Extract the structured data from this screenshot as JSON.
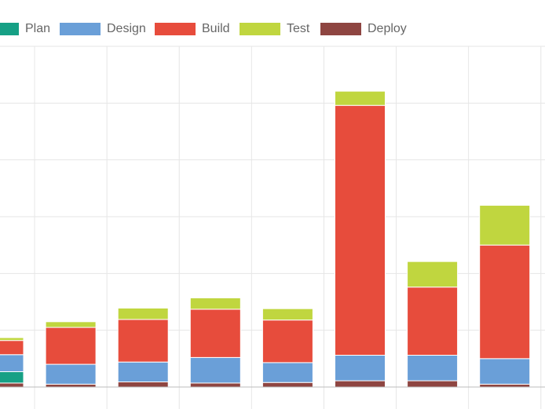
{
  "chart_data": {
    "type": "bar",
    "stacked": true,
    "legend_position": "top",
    "grid": true,
    "categories": [
      "",
      "",
      "",
      "",
      "",
      "",
      "",
      ""
    ],
    "ylim": [
      0,
      60
    ],
    "series": [
      {
        "name": "Plan",
        "color": "#16a085",
        "values": [
          2.0,
          0,
          0,
          0,
          0,
          0,
          0,
          0
        ]
      },
      {
        "name": "Design",
        "color": "#6a9fd8",
        "values": [
          3.0,
          3.5,
          3.5,
          4.5,
          3.5,
          4.5,
          4.5,
          4.5
        ]
      },
      {
        "name": "Build",
        "color": "#e74c3c",
        "values": [
          2.5,
          6.5,
          7.5,
          8.5,
          7.5,
          44.0,
          12.0,
          20.0
        ]
      },
      {
        "name": "Test",
        "color": "#c0d63f",
        "values": [
          0.5,
          1.0,
          2.0,
          2.0,
          2.0,
          2.5,
          4.5,
          7.0
        ]
      },
      {
        "name": "Deploy",
        "color": "#8e4541",
        "values": [
          0.7,
          0.5,
          0.9,
          0.7,
          0.8,
          1.1,
          1.1,
          0.5
        ]
      }
    ]
  },
  "colors": {
    "grid": "#e6e6e6",
    "axis": "#bdbdbd",
    "legend_text": "#666666"
  }
}
